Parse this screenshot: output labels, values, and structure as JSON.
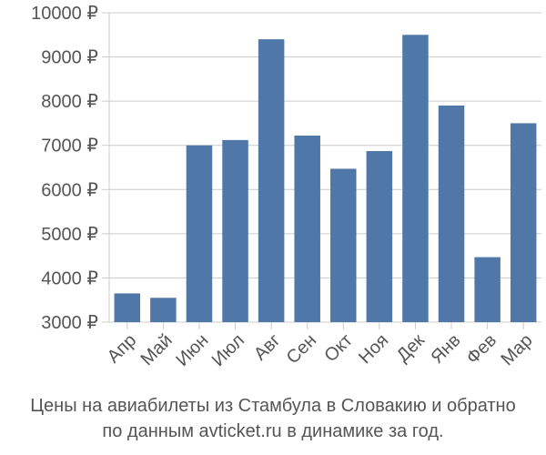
{
  "chart_data": {
    "type": "bar",
    "categories": [
      "Апр",
      "Май",
      "Июн",
      "Июл",
      "Авг",
      "Сен",
      "Окт",
      "Ноя",
      "Дек",
      "Янв",
      "Фев",
      "Мар"
    ],
    "values": [
      3650,
      3550,
      7000,
      7120,
      9400,
      7220,
      6470,
      6870,
      9500,
      7900,
      4470,
      7500
    ],
    "ylim": [
      3000,
      10000
    ],
    "yticks": [
      3000,
      4000,
      5000,
      6000,
      7000,
      8000,
      9000,
      10000
    ],
    "ytick_suffix": " ₽",
    "bar_color": "#4f77a8",
    "grid": true
  },
  "caption": {
    "line1": "Цены на авиабилеты из Стамбула в Словакию и обратно",
    "line2": "по данным avticket.ru в динамике за год."
  }
}
